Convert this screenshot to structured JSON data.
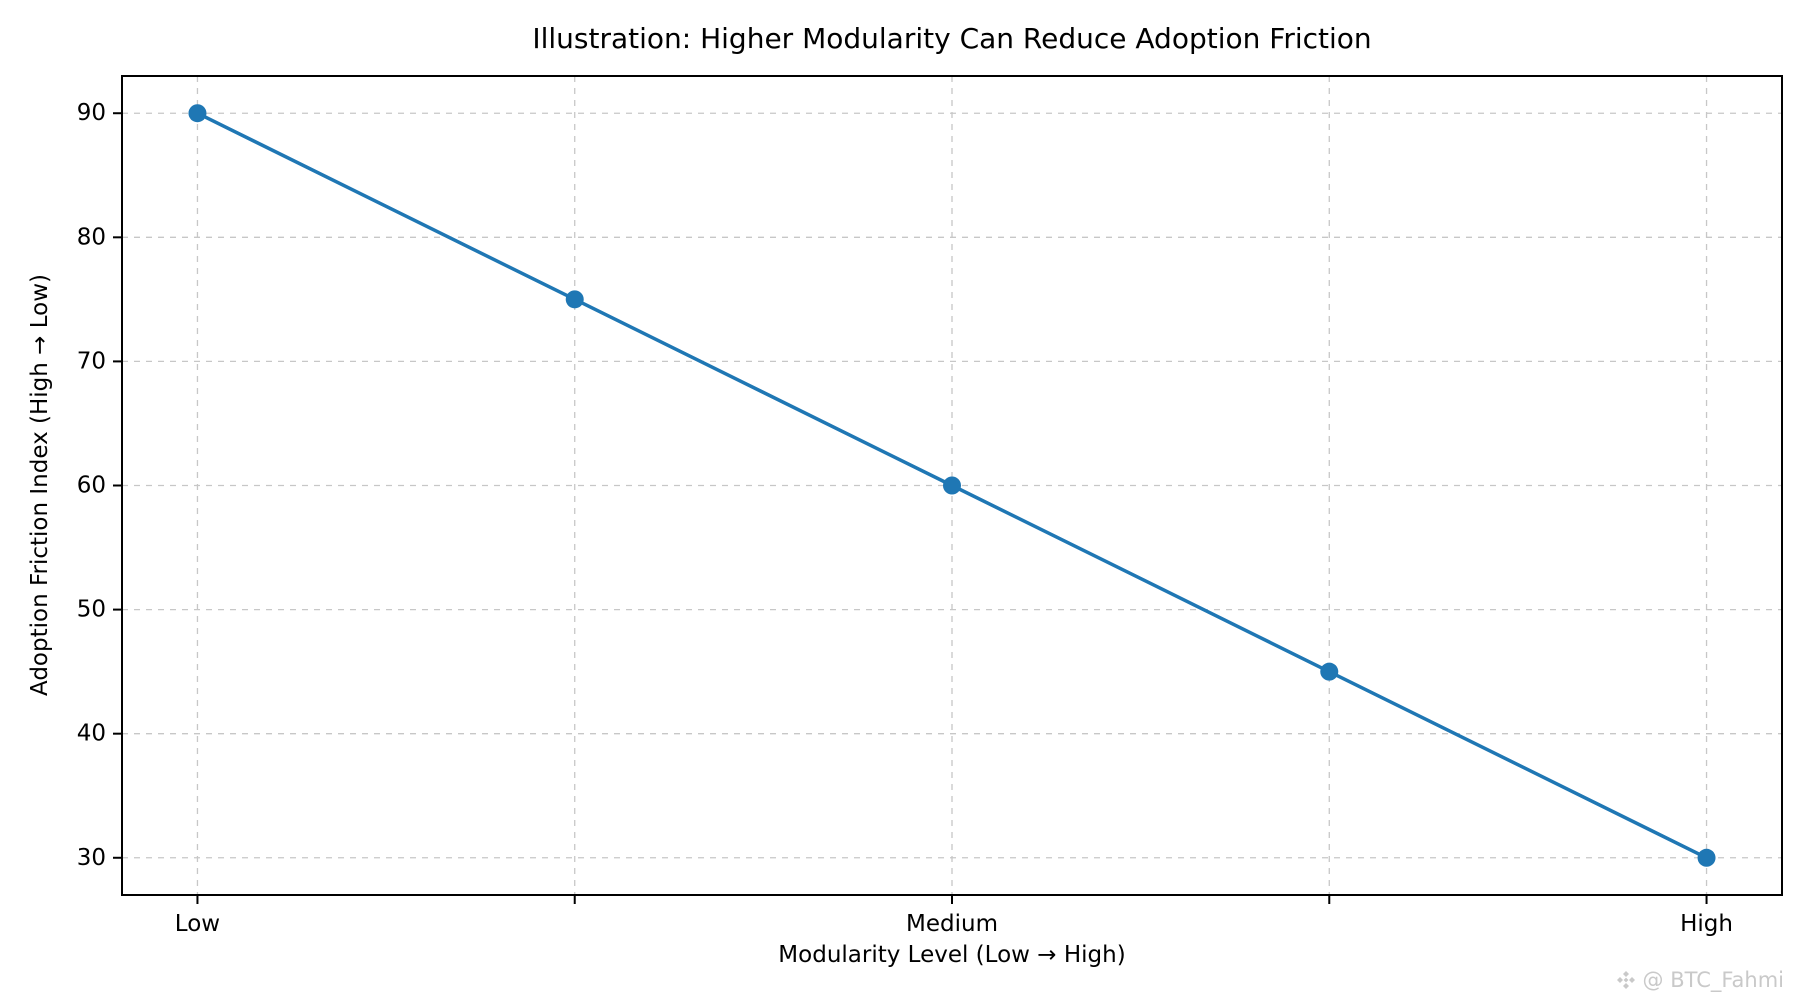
{
  "figure": {
    "background": "#ffffff"
  },
  "chart_data": {
    "type": "line",
    "title": "Illustration: Higher Modularity Can Reduce Adoption Friction",
    "xlabel": "Modularity Level (Low → High)",
    "ylabel": "Adoption Friction Index (High → Low)",
    "categories": [
      "Low",
      "",
      "Medium",
      "",
      "High"
    ],
    "values": [
      90,
      75,
      60,
      45,
      30
    ],
    "yticks": [
      30,
      40,
      50,
      60,
      70,
      80,
      90
    ],
    "xlim": [
      -0.2,
      4.2
    ],
    "ylim": [
      27,
      93
    ],
    "grid": true,
    "grid_style": "dashed",
    "grid_color": "#c7c7c7",
    "line_color": "#1f77b4",
    "marker": "circle",
    "legend": "none"
  },
  "watermark": {
    "icon": "binance-diamond-icon",
    "text": "@ BTC_Fahmi",
    "color": "#c9c9c9"
  }
}
